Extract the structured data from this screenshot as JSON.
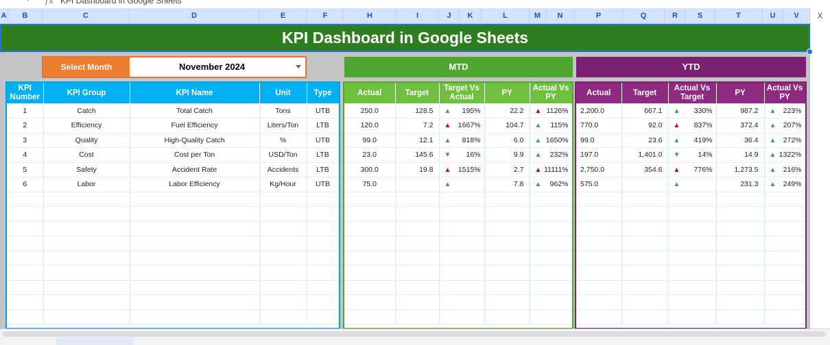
{
  "formula_bar": {
    "fx_label": "fx",
    "cell_text": "KPI Dashboard in Google Sheets"
  },
  "columns": [
    "A",
    "B",
    "C",
    "D",
    "E",
    "F",
    "H",
    "I",
    "J",
    "K",
    "L",
    "M",
    "N",
    "P",
    "Q",
    "R",
    "S",
    "T",
    "U",
    "V"
  ],
  "close_label": "X",
  "dashboard": {
    "title": "KPI Dashboard in Google Sheets",
    "select_month_label": "Select Month",
    "selected_month": "November 2024",
    "mtd_label": "MTD",
    "ytd_label": "YTD"
  },
  "main_table": {
    "headers": [
      "KPI Number",
      "KPI Group",
      "KPI Name",
      "Unit",
      "Type"
    ],
    "rows": [
      [
        "1",
        "Catch",
        "Total Catch",
        "Tons",
        "UTB"
      ],
      [
        "2",
        "Efficiency",
        "Fuel Efficiency",
        "Liters/Ton",
        "LTB"
      ],
      [
        "3",
        "Quality",
        "High-Quality Catch",
        "%",
        "UTB"
      ],
      [
        "4",
        "Cost",
        "Cost per Ton",
        "USD/Ton",
        "LTB"
      ],
      [
        "5",
        "Safety",
        "Accident Rate",
        "Accidents",
        "LTB"
      ],
      [
        "6",
        "Labor",
        "Labor Efficiency",
        "Kg/Hour",
        "UTB"
      ]
    ]
  },
  "mtd_table": {
    "headers": [
      "Actual",
      "Target",
      "Target Vs Actual",
      "PY",
      "Actual Vs PY"
    ],
    "rows": [
      {
        "actual": "250.0",
        "target": "128.5",
        "tva_dir": "up",
        "tva_pct": "195%",
        "py": "22.2",
        "avp_dir": "down",
        "avp_pct": "1126%"
      },
      {
        "actual": "120.0",
        "target": "7.2",
        "tva_dir": "down",
        "tva_pct": "1667%",
        "py": "104.7",
        "avp_dir": "up",
        "avp_pct": "115%"
      },
      {
        "actual": "99.0",
        "target": "12.1",
        "tva_dir": "up",
        "tva_pct": "818%",
        "py": "6.0",
        "avp_dir": "up",
        "avp_pct": "1650%"
      },
      {
        "actual": "23.0",
        "target": "145.6",
        "tva_dir": "down-good",
        "tva_pct": "16%",
        "py": "9.9",
        "avp_dir": "up",
        "avp_pct": "232%"
      },
      {
        "actual": "300.0",
        "target": "19.8",
        "tva_dir": "down",
        "tva_pct": "1515%",
        "py": "2.7",
        "avp_dir": "down",
        "avp_pct": "11111%"
      },
      {
        "actual": "75.0",
        "target": "",
        "tva_dir": "up",
        "tva_pct": "",
        "py": "7.8",
        "avp_dir": "up",
        "avp_pct": "962%"
      }
    ]
  },
  "ytd_table": {
    "headers": [
      "Actual",
      "Target",
      "Actual Vs Target",
      "PY",
      "Actual Vs PY"
    ],
    "rows": [
      {
        "actual": "2,200.0",
        "target": "667.1",
        "tva_dir": "up",
        "tva_pct": "330%",
        "py": "987.2",
        "avp_dir": "up",
        "avp_pct": "223%"
      },
      {
        "actual": "770.0",
        "target": "92.0",
        "tva_dir": "down",
        "tva_pct": "837%",
        "py": "372.4",
        "avp_dir": "up",
        "avp_pct": "207%"
      },
      {
        "actual": "99.0",
        "target": "23.6",
        "tva_dir": "up",
        "tva_pct": "419%",
        "py": "36.4",
        "avp_dir": "up",
        "avp_pct": "272%"
      },
      {
        "actual": "197.0",
        "target": "1,401.0",
        "tva_dir": "down-good",
        "tva_pct": "14%",
        "py": "14.9",
        "avp_dir": "up",
        "avp_pct": "1322%"
      },
      {
        "actual": "2,750.0",
        "target": "354.6",
        "tva_dir": "down",
        "tva_pct": "776%",
        "py": "1,273.5",
        "avp_dir": "up",
        "avp_pct": "216%"
      },
      {
        "actual": "575.0",
        "target": "",
        "tva_dir": "up",
        "tva_pct": "",
        "py": "231.3",
        "avp_dir": "up",
        "avp_pct": "249%"
      }
    ]
  },
  "colors": {
    "green_dark": "#2e7d1e",
    "orange": "#ed7d31",
    "cyan": "#00b0f0",
    "mtd_green": "#70c040",
    "ytd_purple": "#8e2a80",
    "up": "#3fa34d",
    "down": "#d00000"
  },
  "icons": {
    "up": "triangle-up-icon",
    "down": "triangle-down-icon"
  }
}
